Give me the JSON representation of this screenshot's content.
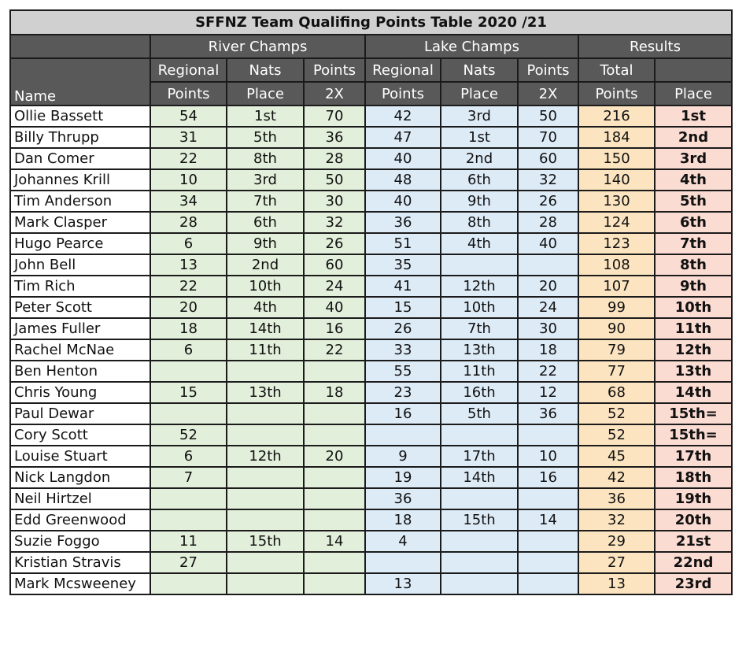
{
  "title": "SFFNZ Team Qualifing Points Table 2020 /21",
  "groups": {
    "river": "River Champs",
    "lake": "Lake Champs",
    "results": "Results"
  },
  "headers": {
    "name": "Name",
    "regional": [
      "Regional",
      "Points"
    ],
    "nats": [
      "Nats",
      "Place"
    ],
    "points2x": [
      "Points",
      "2X"
    ],
    "total": [
      "Total",
      "Points"
    ],
    "place": "Place"
  },
  "colors": {
    "title_bg": "#d0d0d0",
    "header_bg": "#595959",
    "river_bg": "#e2efda",
    "lake_bg": "#ddebf7",
    "total_bg": "#fce4c0",
    "place_bg": "#fbdcd3"
  },
  "rows": [
    {
      "name": "Ollie Bassett",
      "river": [
        "54",
        "1st",
        "70"
      ],
      "lake": [
        "42",
        "3rd",
        "50"
      ],
      "total": "216",
      "place": "1st"
    },
    {
      "name": "Billy Thrupp",
      "river": [
        "31",
        "5th",
        "36"
      ],
      "lake": [
        "47",
        "1st",
        "70"
      ],
      "total": "184",
      "place": "2nd"
    },
    {
      "name": "Dan Comer",
      "river": [
        "22",
        "8th",
        "28"
      ],
      "lake": [
        "40",
        "2nd",
        "60"
      ],
      "total": "150",
      "place": "3rd"
    },
    {
      "name": "Johannes Krill",
      "river": [
        "10",
        "3rd",
        "50"
      ],
      "lake": [
        "48",
        "6th",
        "32"
      ],
      "total": "140",
      "place": "4th"
    },
    {
      "name": "Tim Anderson",
      "river": [
        "34",
        "7th",
        "30"
      ],
      "lake": [
        "40",
        "9th",
        "26"
      ],
      "total": "130",
      "place": "5th"
    },
    {
      "name": "Mark Clasper",
      "river": [
        "28",
        "6th",
        "32"
      ],
      "lake": [
        "36",
        "8th",
        "28"
      ],
      "total": "124",
      "place": "6th"
    },
    {
      "name": "Hugo Pearce",
      "river": [
        "6",
        "9th",
        "26"
      ],
      "lake": [
        "51",
        "4th",
        "40"
      ],
      "total": "123",
      "place": "7th"
    },
    {
      "name": "John Bell",
      "river": [
        "13",
        "2nd",
        "60"
      ],
      "lake": [
        "35",
        "",
        ""
      ],
      "total": "108",
      "place": "8th"
    },
    {
      "name": "Tim Rich",
      "river": [
        "22",
        "10th",
        "24"
      ],
      "lake": [
        "41",
        "12th",
        "20"
      ],
      "total": "107",
      "place": "9th"
    },
    {
      "name": "Peter Scott",
      "river": [
        "20",
        "4th",
        "40"
      ],
      "lake": [
        "15",
        "10th",
        "24"
      ],
      "total": "99",
      "place": "10th"
    },
    {
      "name": "James Fuller",
      "river": [
        "18",
        "14th",
        "16"
      ],
      "lake": [
        "26",
        "7th",
        "30"
      ],
      "total": "90",
      "place": "11th"
    },
    {
      "name": "Rachel McNae",
      "river": [
        "6",
        "11th",
        "22"
      ],
      "lake": [
        "33",
        "13th",
        "18"
      ],
      "total": "79",
      "place": "12th"
    },
    {
      "name": "Ben Henton",
      "river": [
        "",
        "",
        ""
      ],
      "lake": [
        "55",
        "11th",
        "22"
      ],
      "total": "77",
      "place": "13th"
    },
    {
      "name": "Chris Young",
      "river": [
        "15",
        "13th",
        "18"
      ],
      "lake": [
        "23",
        "16th",
        "12"
      ],
      "total": "68",
      "place": "14th"
    },
    {
      "name": "Paul Dewar",
      "river": [
        "",
        "",
        ""
      ],
      "lake": [
        "16",
        "5th",
        "36"
      ],
      "total": "52",
      "place": "15th="
    },
    {
      "name": "Cory Scott",
      "river": [
        "52",
        "",
        ""
      ],
      "lake": [
        "",
        "",
        ""
      ],
      "total": "52",
      "place": "15th="
    },
    {
      "name": "Louise Stuart",
      "river": [
        "6",
        "12th",
        "20"
      ],
      "lake": [
        "9",
        "17th",
        "10"
      ],
      "total": "45",
      "place": "17th"
    },
    {
      "name": "Nick Langdon",
      "river": [
        "7",
        "",
        ""
      ],
      "lake": [
        "19",
        "14th",
        "16"
      ],
      "total": "42",
      "place": "18th"
    },
    {
      "name": "Neil Hirtzel",
      "river": [
        "",
        "",
        ""
      ],
      "lake": [
        "36",
        "",
        ""
      ],
      "total": "36",
      "place": "19th"
    },
    {
      "name": "Edd Greenwood",
      "river": [
        "",
        "",
        ""
      ],
      "lake": [
        "18",
        "15th",
        "14"
      ],
      "total": "32",
      "place": "20th"
    },
    {
      "name": "Suzie Foggo",
      "river": [
        "11",
        "15th",
        "14"
      ],
      "lake": [
        "4",
        "",
        ""
      ],
      "total": "29",
      "place": "21st"
    },
    {
      "name": "Kristian Stravis",
      "river": [
        "27",
        "",
        ""
      ],
      "lake": [
        "",
        "",
        ""
      ],
      "total": "27",
      "place": "22nd"
    },
    {
      "name": "Mark Mcsweeney",
      "river": [
        "",
        "",
        ""
      ],
      "lake": [
        "13",
        "",
        ""
      ],
      "total": "13",
      "place": "23rd"
    }
  ]
}
